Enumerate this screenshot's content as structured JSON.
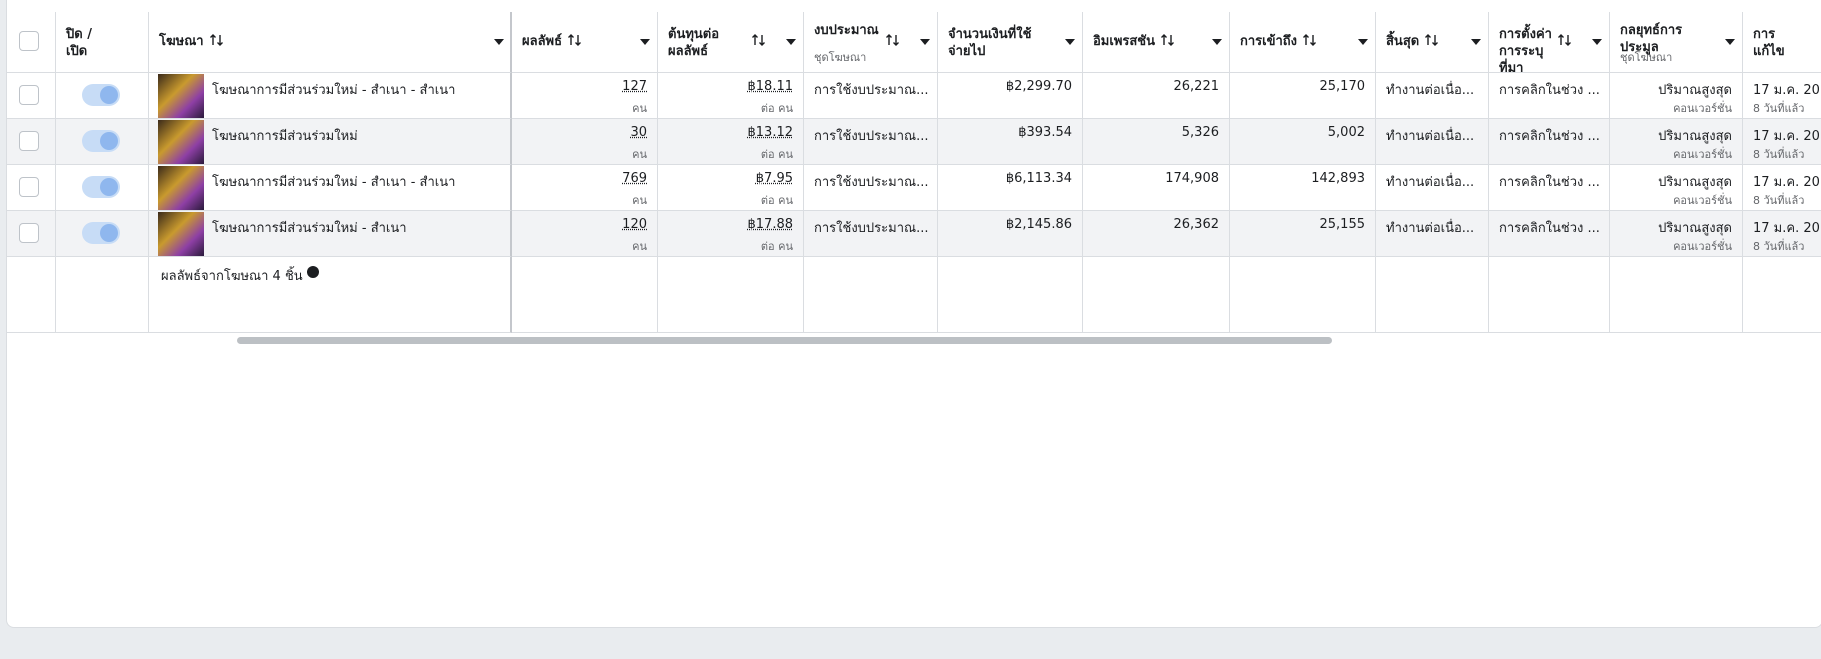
{
  "columns": [
    {
      "label": "ปิด / เปิด"
    },
    {
      "label": "โฆษณา"
    },
    {
      "label": "ผลลัพธ์"
    },
    {
      "label": "ต้นทุนต่อผลลัพธ์"
    },
    {
      "label": "งบประมาณ",
      "sub": "ชุดโฆษณา"
    },
    {
      "label": "จำนวนเงินที่ใช้จ่ายไป"
    },
    {
      "label": "อิมเพรสชัน"
    },
    {
      "label": "การเข้าถึง"
    },
    {
      "label": "สิ้นสุด"
    },
    {
      "label": "การตั้งค่าการระบุที่มา"
    },
    {
      "label": "กลยุทธ์การประมูล",
      "sub": "ชุดโฆษณา"
    },
    {
      "label": "การแก้ไข"
    }
  ],
  "rows": [
    {
      "name": "โฆษณาการมีส่วนร่วมใหม่ - สำเนา - สำเนา",
      "results": "127",
      "results_unit": "คน",
      "cost": "฿18.11",
      "cost_unit": "ต่อ คน",
      "budget": "การใช้งบประมาณ...",
      "spent": "฿2,299.70",
      "impressions": "26,221",
      "reach": "25,170",
      "ends": "ทำงานต่อเนื่อ...",
      "attribution": "การคลิกในช่วง ...",
      "bid": "ปริมาณสูงสุด",
      "bid_sub": "คอนเวอร์ชั่น",
      "edited": "17 ม.ค. 20",
      "edited_sub": "8 วันที่แล้ว"
    },
    {
      "name": "โฆษณาการมีส่วนร่วมใหม่",
      "results": "30",
      "results_unit": "คน",
      "cost": "฿13.12",
      "cost_unit": "ต่อ คน",
      "budget": "การใช้งบประมาณ...",
      "spent": "฿393.54",
      "impressions": "5,326",
      "reach": "5,002",
      "ends": "ทำงานต่อเนื่อ...",
      "attribution": "การคลิกในช่วง ...",
      "bid": "ปริมาณสูงสุด",
      "bid_sub": "คอนเวอร์ชั่น",
      "edited": "17 ม.ค. 20",
      "edited_sub": "8 วันที่แล้ว"
    },
    {
      "name": "โฆษณาการมีส่วนร่วมใหม่ - สำเนา - สำเนา",
      "results": "769",
      "results_unit": "คน",
      "cost": "฿7.95",
      "cost_unit": "ต่อ คน",
      "budget": "การใช้งบประมาณ...",
      "spent": "฿6,113.34",
      "impressions": "174,908",
      "reach": "142,893",
      "ends": "ทำงานต่อเนื่อ...",
      "attribution": "การคลิกในช่วง ...",
      "bid": "ปริมาณสูงสุด",
      "bid_sub": "คอนเวอร์ชั่น",
      "edited": "17 ม.ค. 20",
      "edited_sub": "8 วันที่แล้ว"
    },
    {
      "name": "โฆษณาการมีส่วนร่วมใหม่ - สำเนา",
      "results": "120",
      "results_unit": "คน",
      "cost": "฿17.88",
      "cost_unit": "ต่อ คน",
      "budget": "การใช้งบประมาณ...",
      "spent": "฿2,145.86",
      "impressions": "26,362",
      "reach": "25,155",
      "ends": "ทำงานต่อเนื่อ...",
      "attribution": "การคลิกในช่วง ...",
      "bid": "ปริมาณสูงสุด",
      "bid_sub": "คอนเวอร์ชั่น",
      "edited": "17 ม.ค. 20",
      "edited_sub": "8 วันที่แล้ว"
    }
  ],
  "footer": "ผลลัพธ์จากโฆษณา 4 ชิ้น"
}
